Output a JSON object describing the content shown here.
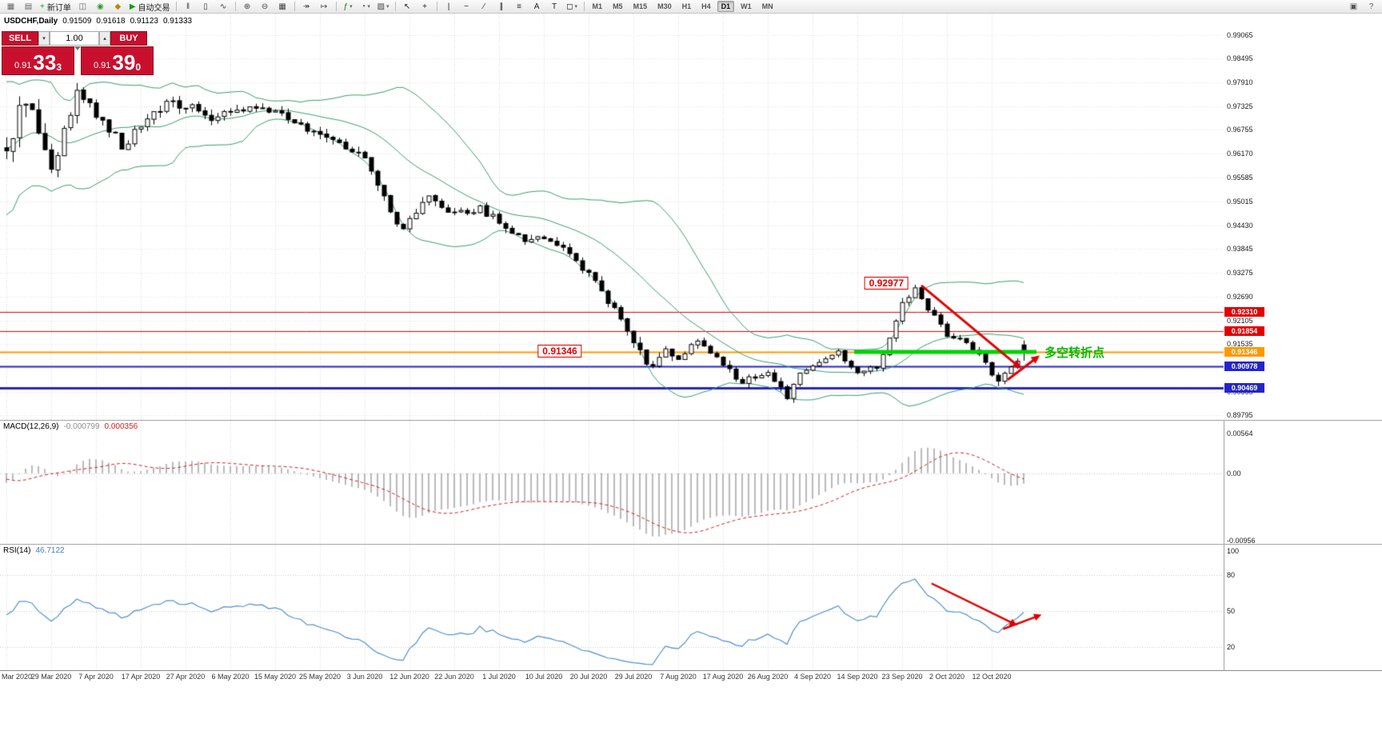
{
  "toolbar": {
    "caret": "▾",
    "timeframes": [
      "M1",
      "M5",
      "M15",
      "M30",
      "H1",
      "H4",
      "D1",
      "W1",
      "MN"
    ],
    "active_timeframe": "D1",
    "items": [
      {
        "name": "new-chart-icon",
        "glyph": "▦",
        "color": "#666"
      },
      {
        "name": "market-watch-icon",
        "glyph": "▤",
        "color": "#666"
      },
      {
        "name": "new-order-button",
        "icon_name": "plus-icon",
        "glyph": "+",
        "label": "新订单",
        "color": "#159c15"
      },
      {
        "name": "chart-windows-icon",
        "glyph": "◫",
        "color": "#666"
      },
      {
        "name": "alerts-icon",
        "glyph": "◉",
        "color": "#2a9c2a"
      },
      {
        "name": "scripts-icon",
        "glyph": "◆",
        "color": "#b8860b"
      },
      {
        "name": "auto-trading-button",
        "icon_name": "play-icon",
        "glyph": "▶",
        "label": "自动交易",
        "color": "#159c15"
      },
      {
        "sep": true
      },
      {
        "name": "bar-chart-icon",
        "glyph": "‖",
        "color": "#444"
      },
      {
        "name": "candlestick-chart-icon",
        "glyph": "▯",
        "color": "#444"
      },
      {
        "name": "line-chart-icon",
        "glyph": "∿",
        "color": "#444"
      },
      {
        "sep": true
      },
      {
        "name": "zoom-in-icon",
        "glyph": "⊕",
        "color": "#444"
      },
      {
        "name": "zoom-out-icon",
        "glyph": "⊖",
        "color": "#444"
      },
      {
        "name": "tile-windows-icon",
        "glyph": "▦",
        "color": "#444"
      },
      {
        "sep": true
      },
      {
        "name": "auto-scroll-icon",
        "glyph": "↠",
        "color": "#444"
      },
      {
        "name": "chart-shift-icon",
        "glyph": "↦",
        "color": "#444"
      },
      {
        "sep": true
      },
      {
        "name": "indicators-icon",
        "glyph": "ƒ",
        "color": "#157a15",
        "caret": true
      },
      {
        "name": "periods-icon",
        "glyph": "◔",
        "color": "#444",
        "caret": true
      },
      {
        "name": "templates-icon",
        "glyph": "▨",
        "color": "#444",
        "caret": true
      },
      {
        "sep": true
      },
      {
        "name": "cursor-icon",
        "glyph": "↖",
        "color": "#222"
      },
      {
        "name": "crosshair-icon",
        "glyph": "+",
        "color": "#222"
      },
      {
        "sep": true
      },
      {
        "name": "vertical-line-icon",
        "glyph": "|",
        "color": "#222"
      },
      {
        "name": "horizontal-line-icon",
        "glyph": "−",
        "color": "#222"
      },
      {
        "name": "trendline-icon",
        "glyph": "∕",
        "color": "#222"
      },
      {
        "name": "channel-icon",
        "glyph": "∥",
        "color": "#222"
      },
      {
        "name": "fibonacci-icon",
        "glyph": "≡",
        "color": "#222"
      },
      {
        "name": "text-icon",
        "glyph": "A",
        "color": "#222"
      },
      {
        "name": "label-icon",
        "glyph": "T",
        "color": "#222"
      },
      {
        "name": "shapes-icon",
        "glyph": "◻",
        "color": "#222",
        "caret": true
      },
      {
        "sep": true
      },
      {
        "tf": true
      },
      {
        "spacer": true
      },
      {
        "name": "toolbars-config-icon",
        "glyph": "▣",
        "color": "#555"
      },
      {
        "name": "help-icon",
        "glyph": "?",
        "color": "#555"
      }
    ]
  },
  "chart": {
    "title": {
      "symbol": "USDCHF,Daily",
      "open": "0.91509",
      "high": "0.91618",
      "low": "0.91123",
      "close": "0.91333"
    },
    "trade_panel": {
      "sell_label": "SELL",
      "buy_label": "BUY",
      "volume": "1.00",
      "spin_up": "▴",
      "spin_down": "▾",
      "sell_base": "0.91",
      "sell_big": "33",
      "sell_sup": "3",
      "buy_base": "0.91",
      "buy_big": "39",
      "buy_sup": "0"
    },
    "y_axis_labels": [
      "0.99065",
      "0.98495",
      "0.97910",
      "0.97325",
      "0.96755",
      "0.96170",
      "0.95585",
      "0.95015",
      "0.94430",
      "0.93845",
      "0.93275",
      "0.92690",
      "0.92105",
      "0.91535",
      "0.90950",
      "0.90365",
      "0.89795"
    ],
    "levels": [
      {
        "label": "0.92310",
        "value": 0.9231,
        "color": "#e00000",
        "width": 1
      },
      {
        "label": "0.91854",
        "value": 0.91854,
        "color": "#e00000",
        "width": 1
      },
      {
        "label": "0.91346",
        "value": 0.91346,
        "color": "#ff9800",
        "width": 2
      },
      {
        "label": "0.90978",
        "value": 0.90978,
        "color": "#2424cc",
        "width": 2
      },
      {
        "label": "0.90469",
        "value": 0.90469,
        "color": "#2424cc",
        "width": 3
      }
    ],
    "annotations": {
      "peak_label": "0.92977",
      "support_label": "0.91346",
      "turning_point_label": "多空转折点"
    },
    "x_axis_labels": [
      "Mar 2020",
      "29 Mar 2020",
      "7 Apr 2020",
      "17 Apr 2020",
      "27 Apr 2020",
      "6 May 2020",
      "15 May 2020",
      "25 May 2020",
      "3 Jun 2020",
      "12 Jun 2020",
      "22 Jun 2020",
      "1 Jul 2020",
      "10 Jul 2020",
      "20 Jul 2020",
      "29 Jul 2020",
      "7 Aug 2020",
      "17 Aug 2020",
      "26 Aug 2020",
      "4 Sep 2020",
      "14 Sep 2020",
      "23 Sep 2020",
      "2 Oct 2020",
      "12 Oct 2020"
    ],
    "colors": {
      "bollinger": "#3a9e6e",
      "bull": "#ffffff",
      "bear": "#000000",
      "wick": "#000000",
      "grid": "#e0e0e0",
      "axis": "#9a9a9a",
      "green_line": "#00d300",
      "arrow": "#e00000",
      "macd_hist": "#b9b9b9",
      "macd_signal": "#d02020",
      "rsi_line": "#4f8fd0"
    }
  },
  "macd": {
    "name": "MACD(12,26,9)",
    "value_main": "-0.000799",
    "value_signal": "0.000356",
    "scale_labels": [
      "0.00564",
      "0.00",
      "-0.00956"
    ],
    "scale_max": 0.00564,
    "scale_min": -0.00956
  },
  "rsi": {
    "name": "RSI(14)",
    "value": "46.7122",
    "scale_top_label": "100",
    "levels": [
      {
        "value": 80,
        "label": "80"
      },
      {
        "value": 50,
        "label": "50"
      },
      {
        "value": 20,
        "label": "20"
      }
    ]
  },
  "chart_data": {
    "type": "candlestick",
    "symbol": "USDCHF",
    "period": "Daily",
    "current_ohlc": {
      "open": 0.91509,
      "high": 0.91618,
      "low": 0.91123,
      "close": 0.91333
    },
    "price_axis": {
      "max": 0.9959,
      "min": 0.8968
    },
    "bars": 160,
    "tick_step": 7,
    "seed": 20201013,
    "indicators": {
      "bollinger": {
        "period": 20,
        "deviation": 2
      },
      "macd": {
        "fast": 12,
        "slow": 26,
        "signal": 9
      },
      "rsi": {
        "period": 14
      }
    },
    "levels_values": [
      0.9231,
      0.91854,
      0.91346,
      0.90978,
      0.90469
    ],
    "peak_high": 0.92977,
    "trend_anchors": [
      [
        -24,
        0.968,
        0.0062
      ],
      [
        -18,
        0.948,
        0.0068
      ],
      [
        -12,
        0.978,
        0.0066
      ],
      [
        -6,
        0.956,
        0.0052
      ],
      [
        0,
        0.962,
        0.0045
      ],
      [
        3,
        0.976,
        0.004
      ],
      [
        7,
        0.958,
        0.0036
      ],
      [
        11,
        0.977,
        0.0032
      ],
      [
        14,
        0.972,
        0.0028
      ],
      [
        18,
        0.964,
        0.0025
      ],
      [
        21,
        0.968,
        0.0023
      ],
      [
        25,
        0.9745,
        0.0021
      ],
      [
        28,
        0.9735,
        0.002
      ],
      [
        32,
        0.97,
        0.0019
      ],
      [
        35,
        0.9715,
        0.0019
      ],
      [
        39,
        0.9732,
        0.0018
      ],
      [
        42,
        0.9722,
        0.0017
      ],
      [
        46,
        0.9685,
        0.0017
      ],
      [
        49,
        0.9672,
        0.0017
      ],
      [
        53,
        0.9625,
        0.0018
      ],
      [
        56,
        0.9605,
        0.002
      ],
      [
        59,
        0.9505,
        0.0022
      ],
      [
        61,
        0.9435,
        0.0022
      ],
      [
        63,
        0.9455,
        0.002
      ],
      [
        66,
        0.9512,
        0.0019
      ],
      [
        70,
        0.9472,
        0.0017
      ],
      [
        74,
        0.9482,
        0.0016
      ],
      [
        77,
        0.9452,
        0.0016
      ],
      [
        81,
        0.9405,
        0.0016
      ],
      [
        84,
        0.9412,
        0.0016
      ],
      [
        88,
        0.9382,
        0.0016
      ],
      [
        91,
        0.9322,
        0.0018
      ],
      [
        94,
        0.9255,
        0.002
      ],
      [
        97,
        0.9185,
        0.0021
      ],
      [
        98,
        0.9152,
        0.0021
      ],
      [
        101,
        0.9092,
        0.002
      ],
      [
        103,
        0.9132,
        0.0018
      ],
      [
        105,
        0.9122,
        0.0016
      ],
      [
        108,
        0.9162,
        0.0016
      ],
      [
        112,
        0.9102,
        0.0016
      ],
      [
        115,
        0.9062,
        0.0016
      ],
      [
        119,
        0.9082,
        0.0015
      ],
      [
        122,
        0.9022,
        0.0015
      ],
      [
        124,
        0.9082,
        0.0015
      ],
      [
        126,
        0.9102,
        0.0014
      ],
      [
        130,
        0.9132,
        0.0013
      ],
      [
        133,
        0.9082,
        0.0013
      ],
      [
        136,
        0.9098,
        0.0013
      ],
      [
        139,
        0.9205,
        0.0015
      ],
      [
        140,
        0.9252,
        0.0015
      ],
      [
        142,
        0.9292,
        0.0013
      ],
      [
        144,
        0.9242,
        0.0013
      ],
      [
        147,
        0.9172,
        0.0013
      ],
      [
        150,
        0.9162,
        0.0012
      ],
      [
        152,
        0.9122,
        0.0012
      ],
      [
        154,
        0.9082,
        0.0012
      ],
      [
        155,
        0.9065,
        0.0011
      ],
      [
        156,
        0.9078,
        0.0011
      ],
      [
        158,
        0.9108,
        0.001
      ],
      [
        159,
        0.91333,
        0.0009
      ]
    ],
    "overrides": {
      "peak": {
        "index": 142,
        "high": 0.92977
      },
      "dip": {
        "index": 155,
        "low": 0.905
      }
    },
    "objects": {
      "green_line": {
        "from_bar": 132.5,
        "to_bar": 161,
        "price": 0.9134
      },
      "trend_arrow": {
        "from": [
          143,
          0.9296
        ],
        "to": [
          158.6,
          0.9093
        ]
      },
      "bounce_arrow": {
        "from": [
          156.5,
          0.9066
        ],
        "to": [
          161.5,
          0.9125
        ]
      },
      "peak_label_anchor": {
        "bar": 142,
        "price": 0.92977
      },
      "support_label_anchor": {
        "bar": 86.5,
        "price": 0.91346
      },
      "turning_label_anchor": {
        "bar": 161.5,
        "price": 0.9134
      },
      "rsi_trend_arrow": {
        "from": [
          144.6,
          73
        ],
        "to": [
          158,
          38
        ]
      },
      "rsi_bounce_arrow": {
        "from": [
          155.8,
          35
        ],
        "to": [
          161.8,
          47
        ]
      }
    }
  }
}
